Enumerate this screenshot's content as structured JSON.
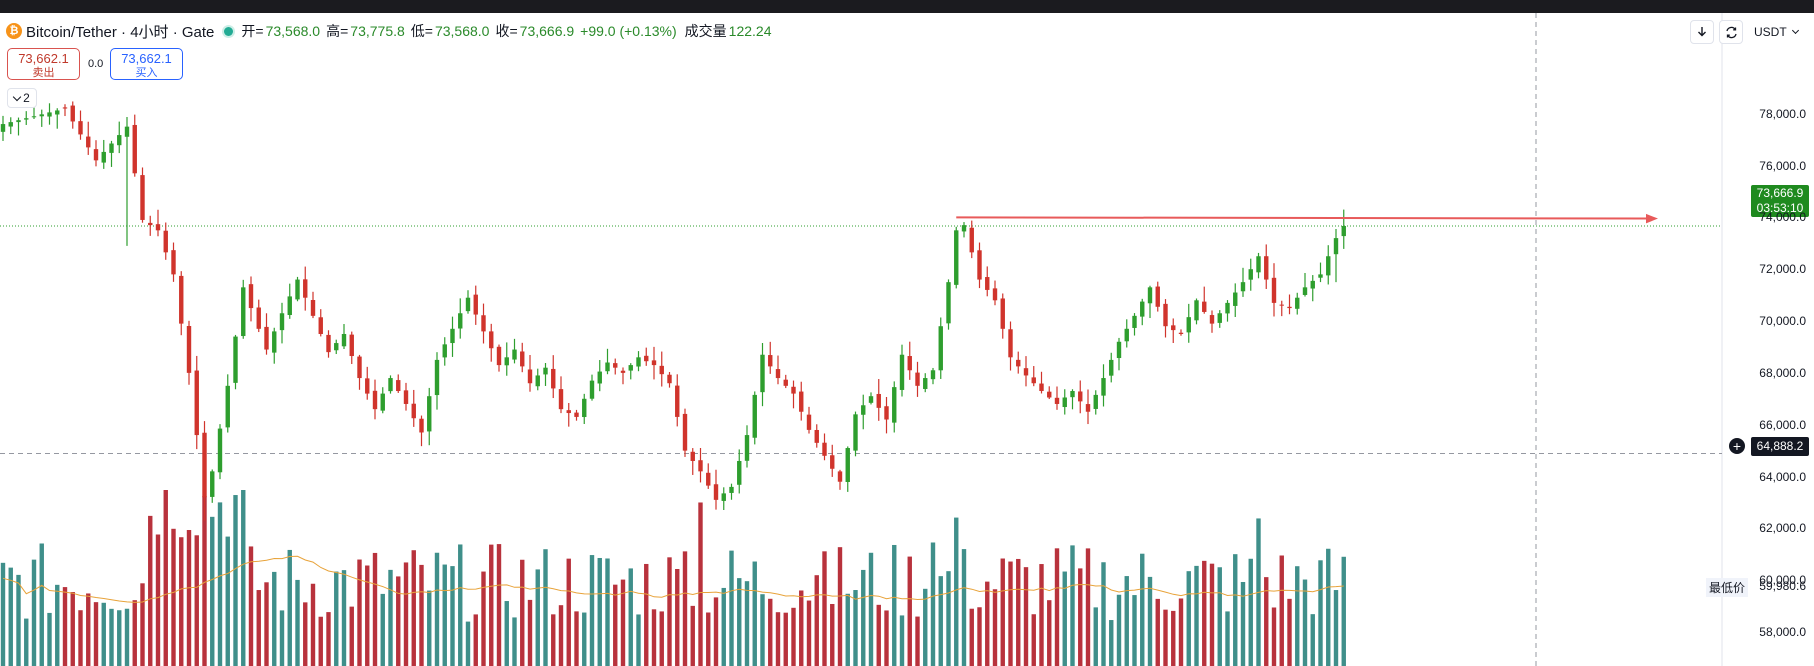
{
  "legend": {
    "symbol": "Bitcoin/Tether · 4小时 · Gate",
    "coin_glyph": "₿",
    "open_label": "开=",
    "open": "73,568.0",
    "high_label": "高=",
    "high": "73,775.8",
    "low_label": "低=",
    "low": "73,568.0",
    "close_label": "收=",
    "close": "73,666.9",
    "change": "+99.0 (+0.13%)",
    "volume_label": "成交量",
    "volume": "122.24"
  },
  "sell": {
    "price": "73,662.1",
    "label": "卖出"
  },
  "buy": {
    "price": "73,662.1",
    "label": "买入"
  },
  "spread": "0.0",
  "indicators_count": "2",
  "toolbar": {
    "download_icon": "download-icon",
    "refresh_icon": "refresh-icon",
    "currency": "USDT"
  },
  "price_tag": {
    "value": "73,666.9",
    "countdown": "03:53:10",
    "color": "#1f8a1f"
  },
  "cross_tag": {
    "value": "64,888.2"
  },
  "min_tag": {
    "label": "最低价",
    "value": "59,980.6"
  },
  "colors": {
    "up": "#2e9e2e",
    "down": "#d0342c",
    "vol_up": "#3f8f8a",
    "vol_down": "#b8323c",
    "ma": "#e8a33a",
    "arrow": "#e85a5a"
  },
  "chart_data": {
    "type": "candlestick",
    "interval": "4h",
    "ylim": [
      57500,
      79300
    ],
    "y_ticks": [
      "78,000.0",
      "76,000.0",
      "74,000.0",
      "72,000.0",
      "70,000.0",
      "68,000.0",
      "66,000.0",
      "64,000.0",
      "62,000.0",
      "60,000.0",
      "58,000.0"
    ],
    "y_tick_values": [
      78000,
      76000,
      74000,
      72000,
      70000,
      68000,
      66000,
      64000,
      62000,
      60000,
      58000
    ],
    "last_price": 73666.9,
    "crosshair_price": 64888.2,
    "resistance": {
      "price": 74000,
      "from_index": 123,
      "to_index": 205
    },
    "volume_ma_period": 20,
    "close_anchors": [
      [
        0,
        77600
      ],
      [
        8,
        78200
      ],
      [
        12,
        76200
      ],
      [
        16,
        77500
      ],
      [
        18,
        73900
      ],
      [
        20,
        73500
      ],
      [
        22,
        71800
      ],
      [
        24,
        68000
      ],
      [
        26,
        63200
      ],
      [
        27,
        64200
      ],
      [
        29,
        67500
      ],
      [
        31,
        71300
      ],
      [
        34,
        68900
      ],
      [
        36,
        70300
      ],
      [
        38,
        71600
      ],
      [
        40,
        70200
      ],
      [
        42,
        68800
      ],
      [
        44,
        69500
      ],
      [
        46,
        67800
      ],
      [
        48,
        66600
      ],
      [
        50,
        67800
      ],
      [
        52,
        66800
      ],
      [
        54,
        65700
      ],
      [
        56,
        68500
      ],
      [
        58,
        69700
      ],
      [
        60,
        70900
      ],
      [
        62,
        69600
      ],
      [
        64,
        68300
      ],
      [
        66,
        68900
      ],
      [
        68,
        67600
      ],
      [
        70,
        68200
      ],
      [
        72,
        66600
      ],
      [
        74,
        66300
      ],
      [
        76,
        67700
      ],
      [
        78,
        68400
      ],
      [
        80,
        68000
      ],
      [
        82,
        68600
      ],
      [
        84,
        68300
      ],
      [
        86,
        67600
      ],
      [
        88,
        65000
      ],
      [
        90,
        64200
      ],
      [
        92,
        63100
      ],
      [
        94,
        63600
      ],
      [
        96,
        65600
      ],
      [
        98,
        68700
      ],
      [
        100,
        67800
      ],
      [
        102,
        67200
      ],
      [
        104,
        65800
      ],
      [
        106,
        64800
      ],
      [
        108,
        63800
      ],
      [
        110,
        66400
      ],
      [
        112,
        67100
      ],
      [
        114,
        66200
      ],
      [
        116,
        68700
      ],
      [
        118,
        67500
      ],
      [
        120,
        68100
      ],
      [
        122,
        71500
      ],
      [
        123,
        73500
      ],
      [
        124,
        73700
      ],
      [
        126,
        71600
      ],
      [
        128,
        70800
      ],
      [
        130,
        68600
      ],
      [
        132,
        67900
      ],
      [
        134,
        67300
      ],
      [
        136,
        66800
      ],
      [
        138,
        67300
      ],
      [
        140,
        66500
      ],
      [
        142,
        67800
      ],
      [
        144,
        69200
      ],
      [
        146,
        70200
      ],
      [
        148,
        71300
      ],
      [
        150,
        69800
      ],
      [
        152,
        69500
      ],
      [
        154,
        70800
      ],
      [
        156,
        69900
      ],
      [
        158,
        70700
      ],
      [
        160,
        71500
      ],
      [
        162,
        72500
      ],
      [
        164,
        70700
      ],
      [
        166,
        70500
      ],
      [
        168,
        71300
      ],
      [
        170,
        71800
      ],
      [
        172,
        73200
      ],
      [
        173,
        73667
      ]
    ]
  }
}
